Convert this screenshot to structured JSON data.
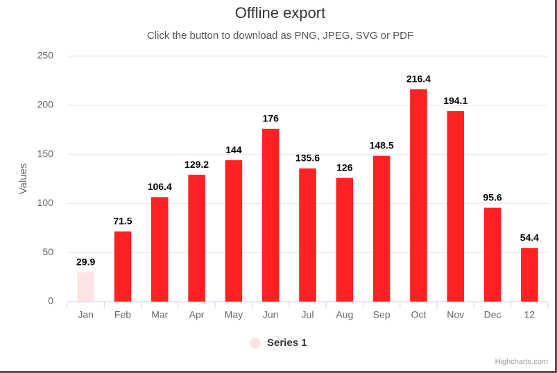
{
  "chart_data": {
    "type": "bar",
    "title": "Offline export",
    "subtitle": "Click the button to download as PNG, JPEG, SVG or PDF",
    "y_label": "Values",
    "categories": [
      "Jan",
      "Feb",
      "Mar",
      "Apr",
      "May",
      "Jun",
      "Jul",
      "Aug",
      "Sep",
      "Oct",
      "Nov",
      "Dec",
      "12"
    ],
    "series": [
      {
        "name": "Series 1",
        "color": "#fde3e3",
        "values": [
          29.9,
          71.5,
          106.4,
          129.2,
          144,
          176,
          135.6,
          126,
          148.5,
          216.4,
          194.1,
          95.6,
          54.4
        ],
        "point_colors": [
          "#fde3e3",
          "#ff2222",
          "#ff2222",
          "#ff2222",
          "#ff2222",
          "#ff2222",
          "#ff2222",
          "#ff2222",
          "#ff2222",
          "#ff2222",
          "#ff2222",
          "#ff2222",
          "#ff2222"
        ]
      }
    ],
    "ylim": [
      0,
      250
    ],
    "yticks": [
      0,
      50,
      100,
      150,
      200,
      250
    ],
    "grid": true,
    "credits": "Highcharts.com"
  }
}
